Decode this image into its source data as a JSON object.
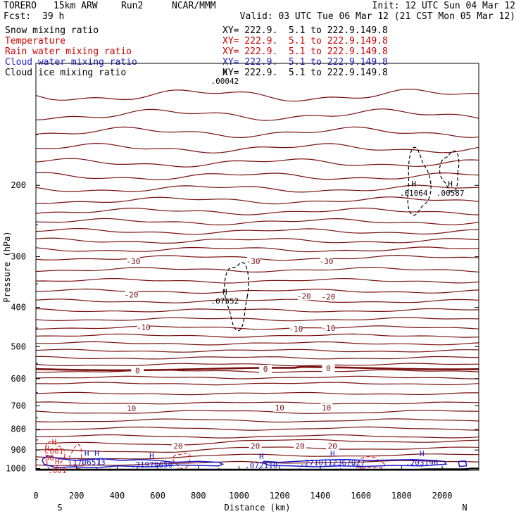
{
  "header": {
    "model": "TORERO",
    "resolution": "15km ARW",
    "run": "Run2",
    "center": "NCAR/MMM",
    "init": "Init: 12 UTC Sun 04 Mar 12",
    "fcst_label": "Fcst:",
    "fcst_value": "39 h",
    "valid": "Valid: 03 UTC Tue 06 Mar 12 (21 CST Mon 05 Mar 12)"
  },
  "legend": [
    {
      "name": "Snow mixing ratio",
      "color": "#000000",
      "xy": "XY= 222.9.  5.1 to 222.9.149.8"
    },
    {
      "name": "Temperature",
      "color": "#cc0000",
      "xy": "XY= 222.9.  5.1 to 222.9.149.8"
    },
    {
      "name": "Rain water mixing ratio",
      "color": "#cc0000",
      "xy": "XY= 222.9.  5.1 to 222.9.149.8"
    },
    {
      "name": "Cloud water mixing ratio",
      "color": "#1f1fcc",
      "xy": "XY= 222.9.  5.1 to 222.9.149.8"
    },
    {
      "name": "Cloud ice mixing ratio",
      "color": "#000000",
      "xy": "XY= 222.9.  5.1 to 222.9.149.8"
    }
  ],
  "colors": {
    "temperature": "#7a1010",
    "rain": "#dd2222",
    "cloud_water": "#1a1acc",
    "snow": "#000000",
    "terrain": "#000000"
  },
  "chart_data": {
    "type": "line",
    "xlabel": "Distance (km)",
    "ylabel": "Pressure (hPa)",
    "xlim": [
      0,
      2180
    ],
    "ylim": [
      1010,
      100
    ],
    "x_ticks": [
      0,
      200,
      400,
      600,
      800,
      1000,
      1200,
      1400,
      1600,
      1800,
      2000
    ],
    "y_ticks": [
      200,
      300,
      400,
      500,
      600,
      700,
      800,
      900,
      1000
    ],
    "left_end_label": "S",
    "right_end_label": "N",
    "isotherm_interval": 5,
    "temperature_labels": [
      {
        "value": "-30",
        "x": 480,
        "p": 308
      },
      {
        "value": "-30",
        "x": 1070,
        "p": 308
      },
      {
        "value": "-30",
        "x": 1430,
        "p": 308
      },
      {
        "value": "-20",
        "x": 470,
        "p": 372
      },
      {
        "value": "-20",
        "x": 1320,
        "p": 375
      },
      {
        "value": "-20",
        "x": 1440,
        "p": 377
      },
      {
        "value": "-10",
        "x": 530,
        "p": 448
      },
      {
        "value": "-10",
        "x": 1280,
        "p": 452
      },
      {
        "value": "-10",
        "x": 1440,
        "p": 450
      },
      {
        "value": "0",
        "x": 500,
        "p": 573
      },
      {
        "value": "0",
        "x": 1130,
        "p": 568
      },
      {
        "value": "0",
        "x": 1440,
        "p": 565
      },
      {
        "value": "10",
        "x": 470,
        "p": 710
      },
      {
        "value": "10",
        "x": 1200,
        "p": 707
      },
      {
        "value": "10",
        "x": 1430,
        "p": 708
      },
      {
        "value": "20",
        "x": 700,
        "p": 879
      },
      {
        "value": "20",
        "x": 1080,
        "p": 879
      },
      {
        "value": "20",
        "x": 1300,
        "p": 879
      },
      {
        "value": "20",
        "x": 1460,
        "p": 879
      }
    ],
    "maxima": [
      {
        "label": ".00042",
        "x": 930,
        "p": 110,
        "color": "black"
      },
      {
        "label": ".01064",
        "x": 1860,
        "p": 208,
        "color": "black"
      },
      {
        "label": ".00587",
        "x": 2040,
        "p": 208,
        "color": "black"
      },
      {
        "label": ".07552",
        "x": 930,
        "p": 384,
        "color": "black"
      },
      {
        "label": ".001",
        "x": 90,
        "p": 902,
        "color": "red"
      },
      {
        "label": ".001",
        "x": 105,
        "p": 1006,
        "color": "red"
      },
      {
        "label": ".1",
        "x": 300,
        "p": 961,
        "color": "blue"
      },
      {
        "label": ".1706573",
        "x": 250,
        "p": 961,
        "color": "blue"
      },
      {
        "label": ".31979650",
        "x": 570,
        "p": 975,
        "color": "blue"
      },
      {
        "label": ".072110",
        "x": 1110,
        "p": 978,
        "color": "blue"
      },
      {
        "label": ".2710112367027",
        "x": 1460,
        "p": 963,
        "color": "blue"
      },
      {
        "label": ".203196",
        "x": 1900,
        "p": 963,
        "color": "blue"
      },
      {
        "label": ".30",
        "x": 55,
        "p": 936,
        "color": "red"
      }
    ]
  }
}
